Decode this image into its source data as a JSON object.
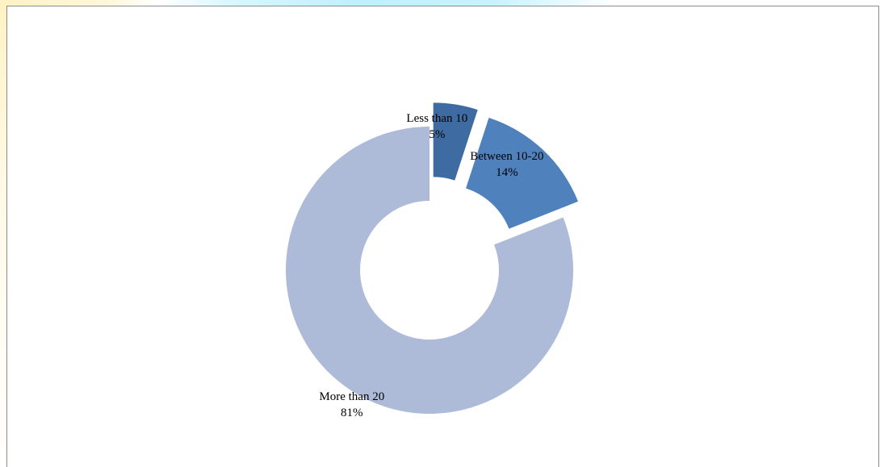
{
  "chart_data": {
    "type": "pie",
    "variant": "doughnut",
    "exploded": true,
    "title": "",
    "slices": [
      {
        "label": "Less than 10",
        "value": 5,
        "value_label": "5%",
        "color": "#3e6ba1"
      },
      {
        "label": "Between 10-20",
        "value": 14,
        "value_label": "14%",
        "color": "#4f81bd"
      },
      {
        "label": "More than 20",
        "value": 81,
        "value_label": "81%",
        "color": "#adbbd8"
      }
    ],
    "legend": "none"
  }
}
